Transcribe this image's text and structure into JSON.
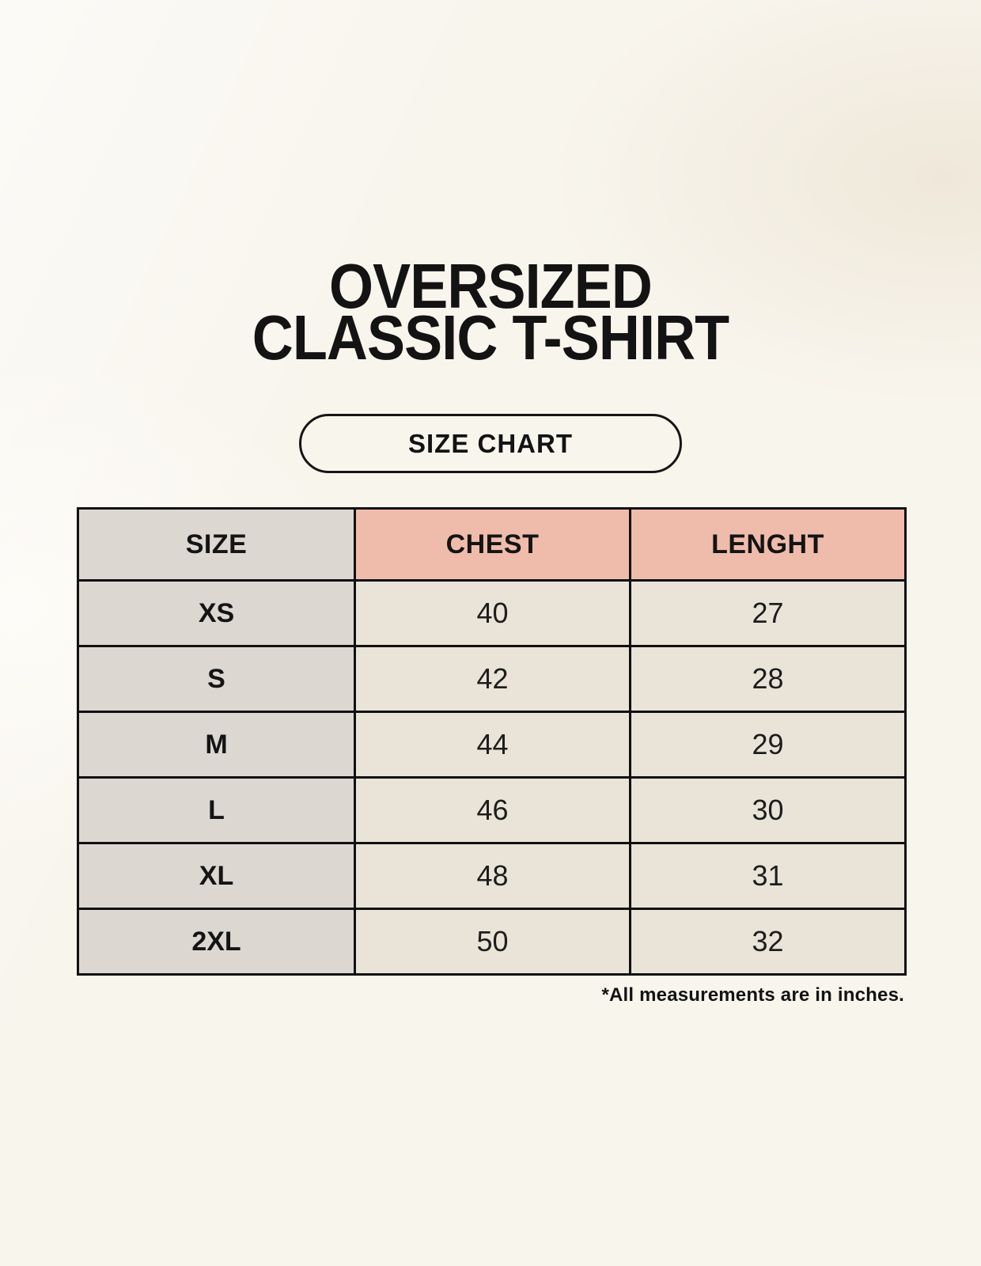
{
  "page": {
    "title_line1": "OVERSIZED",
    "title_line2": "CLASSIC T-SHIRT",
    "badge_label": "SIZE CHART",
    "footnote": "*All measurements are in inches."
  },
  "table": {
    "headers": [
      "SIZE",
      "CHEST",
      "LENGHT"
    ],
    "rows": [
      {
        "size": "XS",
        "chest": "40",
        "length": "27"
      },
      {
        "size": "S",
        "chest": "42",
        "length": "28"
      },
      {
        "size": "M",
        "chest": "44",
        "length": "29"
      },
      {
        "size": "L",
        "chest": "46",
        "length": "30"
      },
      {
        "size": "XL",
        "chest": "48",
        "length": "31"
      },
      {
        "size": "2XL",
        "chest": "50",
        "length": "32"
      }
    ]
  },
  "colors": {
    "background": "#f8f5ed",
    "size_column_bg": "#ddd7d1",
    "measure_header_bg": "#efbcab",
    "data_cell_bg": "#eae4d8",
    "border": "#101010",
    "text": "#131313"
  }
}
